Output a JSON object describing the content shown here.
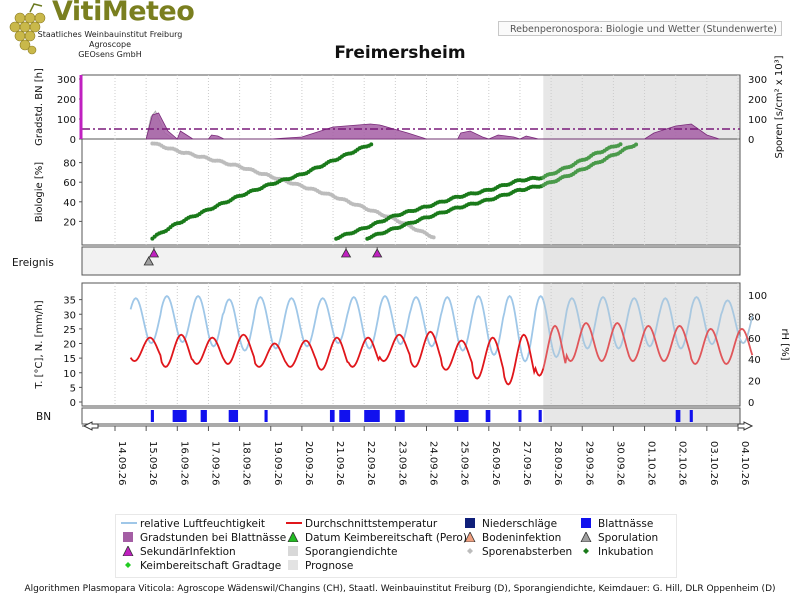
{
  "logo": {
    "name": "VitiMeteo",
    "lines": [
      "Staatliches Weinbauinstitut Freiburg",
      "Agroscope",
      "GEOsens GmbH"
    ]
  },
  "subtitle": "Rebenperonospora: Biologie und Wetter (Stundenwerte)",
  "title": "Freimersheim",
  "footer": "Algorithmen Plasmopara Viticola: Agroscope Wädenswil/Changins (CH), Staatl. Weinbauinstitut Freiburg (D), Sporangiendichte, Keimdauer: G. Hill, DLR Oppenheim (D)",
  "colors": {
    "humidity": "#9fc7e8",
    "temperature": "#e0161b",
    "precipitation": "#0f1f7a",
    "leaf_wetness": "#1111ee",
    "degree_hours": "#a45ea4",
    "secondary_infection": "#c020c0",
    "germination_date": "#22bb22",
    "soil_infection": "#f0a080",
    "sporangia_density": "#d8d8d8",
    "spore_death": "#bcbcbc",
    "sporulation": "#a0a0a0",
    "incubation": "#1a7a1a",
    "germination_degree_days": "#22cc22",
    "forecast": "#e3e3e3",
    "threshold_line": "#7a1a7a"
  },
  "chart_data": {
    "type": "line",
    "x_start": "14.09.26",
    "x_end": "04.10.26",
    "x_ticks": [
      "14.09.26",
      "15.09.26",
      "16.09.26",
      "17.09.26",
      "18.09.26",
      "19.09.26",
      "20.09.26",
      "21.09.26",
      "22.09.26",
      "23.09.26",
      "24.09.26",
      "25.09.26",
      "26.09.26",
      "27.09.26",
      "28.09.26",
      "29.09.26",
      "30.09.26",
      "01.10.26",
      "02.10.26",
      "03.10.26",
      "04.10.26"
    ],
    "forecast_start": "27.09.26 18:00",
    "panels": {
      "degree_hours": {
        "ylabel": "Gradstd. BN [h]",
        "ylabel_right": "Sporen [s/cm² x 10³]",
        "ylim": [
          0,
          300
        ],
        "y_ticks": [
          0,
          100,
          200,
          300
        ],
        "threshold": 50,
        "series": {
          "Gradstunden bei Blattnässe": [
            [
              15.0,
              0
            ],
            [
              15.2,
              120
            ],
            [
              15.4,
              130
            ],
            [
              15.7,
              40
            ],
            [
              16.0,
              0
            ],
            [
              16.1,
              40
            ],
            [
              16.3,
              20
            ],
            [
              16.5,
              0
            ],
            [
              17.0,
              0
            ],
            [
              17.1,
              20
            ],
            [
              17.3,
              15
            ],
            [
              17.5,
              0
            ],
            [
              18.0,
              0
            ],
            [
              19.0,
              0
            ],
            [
              20.0,
              10
            ],
            [
              21.0,
              60
            ],
            [
              22.2,
              75
            ],
            [
              22.5,
              70
            ],
            [
              23.4,
              30
            ],
            [
              23.8,
              10
            ],
            [
              24.0,
              0
            ],
            [
              25.0,
              0
            ],
            [
              25.1,
              30
            ],
            [
              25.4,
              40
            ],
            [
              25.8,
              10
            ],
            [
              26.0,
              0
            ],
            [
              26.3,
              20
            ],
            [
              26.8,
              10
            ],
            [
              27.0,
              0
            ],
            [
              27.2,
              15
            ],
            [
              27.6,
              0
            ],
            [
              31.0,
              0
            ],
            [
              31.3,
              30
            ],
            [
              32.0,
              65
            ],
            [
              32.5,
              75
            ],
            [
              33.0,
              20
            ],
            [
              33.4,
              0
            ]
          ],
          "Sporangiendichte": [
            [
              15.0,
              0
            ],
            [
              15.15,
              110
            ],
            [
              15.3,
              140
            ],
            [
              15.6,
              30
            ],
            [
              15.9,
              0
            ]
          ]
        }
      },
      "biology": {
        "ylabel": "Biologie [%]",
        "ylim": [
          0,
          100
        ],
        "y_ticks": [
          20,
          40,
          60,
          80
        ],
        "series": {
          "Inkubation": [
            [
              [
                15.2,
                3
              ],
              [
                16.0,
                18
              ],
              [
                17.0,
                32
              ],
              [
                18.0,
                46
              ],
              [
                19.0,
                58
              ],
              [
                20.0,
                68
              ],
              [
                21.0,
                82
              ],
              [
                22.0,
                96
              ],
              [
                22.3,
                100
              ]
            ],
            [
              [
                21.1,
                3
              ],
              [
                22.0,
                13
              ],
              [
                23.0,
                26
              ],
              [
                24.0,
                35
              ],
              [
                25.0,
                45
              ],
              [
                26.0,
                52
              ],
              [
                27.0,
                62
              ],
              [
                27.75,
                65
              ]
            ],
            [
              [
                22.1,
                3
              ],
              [
                23.0,
                13
              ],
              [
                24.0,
                24
              ],
              [
                25.0,
                34
              ],
              [
                26.0,
                42
              ],
              [
                27.0,
                52
              ],
              [
                27.75,
                57
              ]
            ]
          ],
          "Inkubation (Prognose)": [
            [
              [
                27.75,
                65
              ],
              [
                28.5,
                75
              ],
              [
                29.5,
                90
              ],
              [
                30.3,
                100
              ]
            ],
            [
              [
                27.75,
                57
              ],
              [
                28.5,
                66
              ],
              [
                29.5,
                80
              ],
              [
                30.8,
                100
              ]
            ]
          ],
          "Sporenabsterben": [
            [
              15.2,
              100
            ],
            [
              16.0,
              92
            ],
            [
              17.0,
              84
            ],
            [
              18.0,
              76
            ],
            [
              19.0,
              66
            ],
            [
              20.0,
              56
            ],
            [
              21.0,
              46
            ],
            [
              22.0,
              34
            ],
            [
              23.0,
              22
            ],
            [
              23.8,
              10
            ],
            [
              24.3,
              3
            ]
          ]
        }
      },
      "events": {
        "label": "Ereignis",
        "SekundärInfektion": [
          "15.09.26 06:00",
          "21.09.26 10:00",
          "22.09.26 10:00"
        ],
        "Sporulation": [
          "15.09.26 02:00"
        ]
      },
      "weather": {
        "ylabel": "T. [°C], N. [mm/h]",
        "ylabel_right": "rH [%]",
        "ylim": [
          0,
          40
        ],
        "y_ticks": [
          0,
          5,
          10,
          15,
          20,
          25,
          30,
          35
        ],
        "rh_ylim": [
          0,
          100
        ],
        "rh_ticks": [
          0,
          20,
          40,
          60,
          80,
          100
        ],
        "temperature_daily_max": [
          22,
          23,
          22,
          23,
          20,
          21,
          22,
          22,
          23,
          24,
          21,
          22,
          23,
          26,
          27,
          27,
          26,
          26,
          25,
          25
        ],
        "temperature_daily_min": [
          14,
          12,
          13,
          13,
          12,
          12,
          11,
          12,
          14,
          12,
          11,
          8,
          6,
          9,
          14,
          14,
          14,
          14,
          13,
          13
        ],
        "humidity_daily_max": [
          97,
          99,
          99,
          96,
          98,
          97,
          97,
          98,
          99,
          98,
          98,
          99,
          99,
          99,
          97,
          98,
          97,
          97,
          98,
          95
        ],
        "humidity_daily_min": [
          55,
          56,
          52,
          48,
          50,
          52,
          55,
          50,
          54,
          52,
          48,
          44,
          38,
          42,
          50,
          50,
          52,
          50,
          54,
          55
        ]
      },
      "leaf_wetness": {
        "label": "BN",
        "intervals": [
          [
            15.15,
            15.25
          ],
          [
            15.85,
            16.3
          ],
          [
            16.75,
            16.95
          ],
          [
            17.65,
            17.95
          ],
          [
            18.8,
            18.9
          ],
          [
            20.9,
            21.05
          ],
          [
            21.2,
            21.55
          ],
          [
            22.0,
            22.5
          ],
          [
            23.0,
            23.3
          ],
          [
            24.9,
            25.35
          ],
          [
            25.9,
            26.05
          ],
          [
            26.95,
            27.05
          ],
          [
            27.6,
            27.7
          ],
          [
            32.0,
            32.15
          ],
          [
            32.45,
            32.55
          ]
        ]
      }
    },
    "legend": [
      {
        "label": "relative Luftfeuchtigkeit",
        "icon": "line",
        "color": "#9fc7e8"
      },
      {
        "label": "Durchschnittstemperatur",
        "icon": "line",
        "color": "#e0161b"
      },
      {
        "label": "Niederschläge",
        "icon": "square",
        "color": "#0f1f7a"
      },
      {
        "label": "Blattnässe",
        "icon": "square",
        "color": "#1111ee"
      },
      {
        "label": "Gradstunden bei Blattnässe",
        "icon": "square",
        "color": "#a45ea4"
      },
      {
        "label": "Datum Keimbereitschaft (Pero)",
        "icon": "triangle",
        "color": "#22bb22"
      },
      {
        "label": "Bodeninfektion",
        "icon": "triangle",
        "color": "#f0a080"
      },
      {
        "label": "Sporulation",
        "icon": "triangle",
        "color": "#a0a0a0"
      },
      {
        "label": "SekundärInfektion",
        "icon": "triangle",
        "color": "#c020c0"
      },
      {
        "label": "Sporangiendichte",
        "icon": "square",
        "color": "#d8d8d8"
      },
      {
        "label": "Sporenabsterben",
        "icon": "dot",
        "color": "#bcbcbc"
      },
      {
        "label": "Inkubation",
        "icon": "dot",
        "color": "#1a7a1a"
      },
      {
        "label": "Keimbereitschaft Gradtage",
        "icon": "dot",
        "color": "#22cc22"
      },
      {
        "label": "Prognose",
        "icon": "square",
        "color": "#e3e3e3"
      }
    ]
  }
}
